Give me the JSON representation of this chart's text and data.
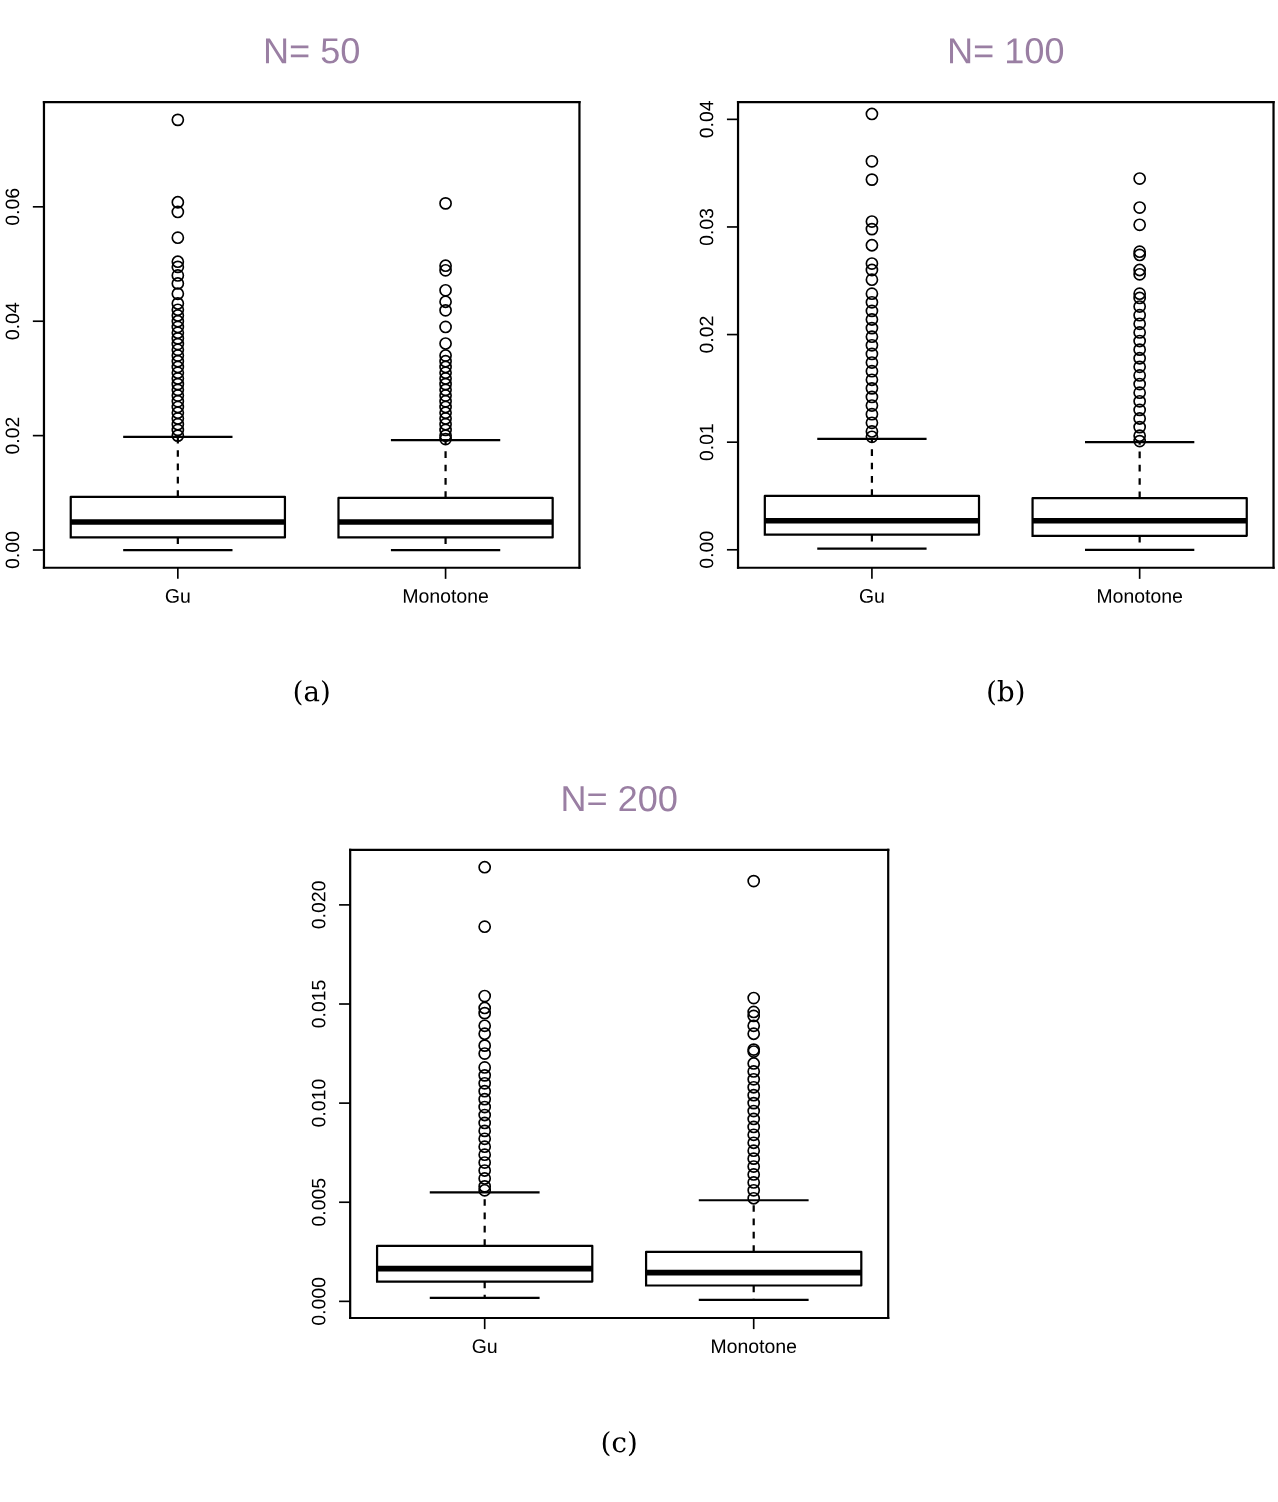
{
  "chart_data": [
    {
      "type": "box",
      "title": "N= 50",
      "categories": [
        "Gu",
        "Monotone"
      ],
      "ylim": [
        -0.0031,
        0.0783
      ],
      "yticks": [
        {
          "value": 0,
          "label": "0.00"
        },
        {
          "value": 0.02,
          "label": "0.02"
        },
        {
          "value": 0.04,
          "label": "0.04"
        },
        {
          "value": 0.06,
          "label": "0.06"
        }
      ],
      "annotations": [
        "(a)"
      ],
      "boxes": [
        {
          "low": 0.0,
          "q1": 0.0022,
          "median": 0.0049,
          "q3": 0.0093,
          "high": 0.0198,
          "outliers": [
            0.0752,
            0.0608,
            0.0591,
            0.0546,
            0.0504,
            0.0495,
            0.048,
            0.0466,
            0.0448,
            0.0431,
            0.042,
            0.041,
            0.04,
            0.039,
            0.038,
            0.037,
            0.036,
            0.035,
            0.034,
            0.033,
            0.032,
            0.031,
            0.03,
            0.029,
            0.028,
            0.027,
            0.026,
            0.025,
            0.024,
            0.023,
            0.022,
            0.021,
            0.02
          ]
        },
        {
          "low": 0.0,
          "q1": 0.0022,
          "median": 0.0049,
          "q3": 0.0091,
          "high": 0.0192,
          "outliers": [
            0.0606,
            0.0497,
            0.0489,
            0.0454,
            0.0434,
            0.0419,
            0.039,
            0.0361,
            0.034,
            0.033,
            0.032,
            0.031,
            0.03,
            0.029,
            0.028,
            0.027,
            0.026,
            0.025,
            0.024,
            0.023,
            0.022,
            0.021,
            0.02,
            0.0194
          ]
        }
      ]
    },
    {
      "type": "box",
      "title": "N= 100",
      "categories": [
        "Gu",
        "Monotone"
      ],
      "ylim": [
        -0.00167,
        0.0416
      ],
      "yticks": [
        {
          "value": 0,
          "label": "0.00"
        },
        {
          "value": 0.01,
          "label": "0.01"
        },
        {
          "value": 0.02,
          "label": "0.02"
        },
        {
          "value": 0.03,
          "label": "0.03"
        },
        {
          "value": 0.04,
          "label": "0.04"
        }
      ],
      "annotations": [
        "(b)"
      ],
      "boxes": [
        {
          "low": 0.0001,
          "q1": 0.0014,
          "median": 0.0027,
          "q3": 0.005,
          "high": 0.0103,
          "outliers": [
            0.0405,
            0.0361,
            0.0344,
            0.0305,
            0.0298,
            0.0283,
            0.0266,
            0.026,
            0.0251,
            0.0238,
            0.023,
            0.0222,
            0.0214,
            0.0206,
            0.0198,
            0.019,
            0.0182,
            0.0174,
            0.0166,
            0.0158,
            0.015,
            0.0142,
            0.0134,
            0.0126,
            0.0118,
            0.011,
            0.0105
          ]
        },
        {
          "low": 0.0,
          "q1": 0.0013,
          "median": 0.0027,
          "q3": 0.0048,
          "high": 0.01,
          "outliers": [
            0.0345,
            0.0318,
            0.0302,
            0.0277,
            0.0274,
            0.026,
            0.0256,
            0.0238,
            0.0234,
            0.0226,
            0.0218,
            0.021,
            0.0202,
            0.0194,
            0.0186,
            0.0178,
            0.017,
            0.0162,
            0.0154,
            0.0146,
            0.0138,
            0.013,
            0.0122,
            0.0114,
            0.0106,
            0.0101
          ]
        }
      ]
    },
    {
      "type": "box",
      "title": "N= 200",
      "categories": [
        "Gu",
        "Monotone"
      ],
      "ylim": [
        -0.00084,
        0.02277
      ],
      "yticks": [
        {
          "value": 0,
          "label": "0.000"
        },
        {
          "value": 0.005,
          "label": "0.005"
        },
        {
          "value": 0.01,
          "label": "0.010"
        },
        {
          "value": 0.015,
          "label": "0.015"
        },
        {
          "value": 0.02,
          "label": "0.020"
        }
      ],
      "annotations": [
        "(c)"
      ],
      "boxes": [
        {
          "low": 0.00017,
          "q1": 0.001,
          "median": 0.00165,
          "q3": 0.0028,
          "high": 0.0055,
          "outliers": [
            0.0219,
            0.0189,
            0.0154,
            0.0148,
            0.01454,
            0.0139,
            0.0135,
            0.0129,
            0.0125,
            0.0118,
            0.0114,
            0.011,
            0.0106,
            0.0102,
            0.0098,
            0.0094,
            0.009,
            0.0086,
            0.0082,
            0.0078,
            0.0074,
            0.007,
            0.0066,
            0.0062,
            0.0058,
            0.0056
          ]
        },
        {
          "low": 7e-05,
          "q1": 0.0008,
          "median": 0.00145,
          "q3": 0.0025,
          "high": 0.0051,
          "outliers": [
            0.0212,
            0.0153,
            0.0146,
            0.0144,
            0.0139,
            0.0135,
            0.0127,
            0.0126,
            0.012,
            0.0116,
            0.0112,
            0.0108,
            0.0104,
            0.01,
            0.0096,
            0.0092,
            0.0088,
            0.0084,
            0.008,
            0.0076,
            0.0072,
            0.0068,
            0.0064,
            0.006,
            0.0056,
            0.0052
          ]
        }
      ]
    }
  ]
}
